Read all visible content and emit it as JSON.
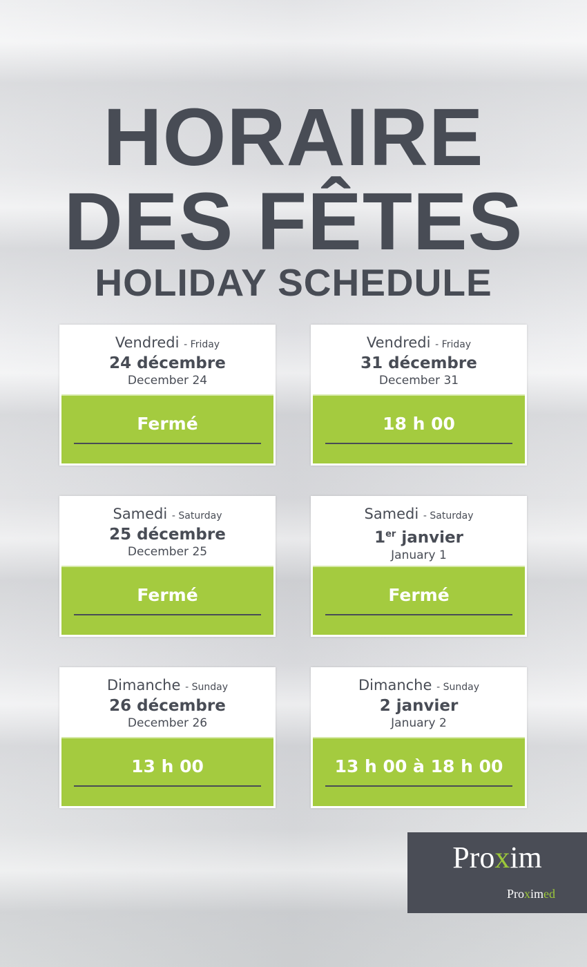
{
  "title": {
    "line1": "HORAIRE",
    "line2": "DES FÊTES",
    "line3": "HOLIDAY SCHEDULE"
  },
  "cards": [
    {
      "day_fr": "Vendredi",
      "day_en": "- Friday",
      "date_fr": "24 décembre",
      "date_en": "December 24",
      "hours": "Fermé"
    },
    {
      "day_fr": "Vendredi",
      "day_en": "- Friday",
      "date_fr": "31 décembre",
      "date_en": "December 31",
      "hours": "18 h 00"
    },
    {
      "day_fr": "Samedi",
      "day_en": "- Saturday",
      "date_fr": "25 décembre",
      "date_en": "December 25",
      "hours": "Fermé"
    },
    {
      "day_fr": "Samedi",
      "day_en": "- Saturday",
      "date_fr_num": "1",
      "date_fr_sup": "er",
      "date_fr": "janvier",
      "date_en": "January 1",
      "hours": "Fermé"
    },
    {
      "day_fr": "Dimanche",
      "day_en": "- Sunday",
      "date_fr": "26 décembre",
      "date_en": "December 26",
      "hours": "13 h 00"
    },
    {
      "day_fr": "Dimanche",
      "day_en": "- Sunday",
      "date_fr": "2 janvier",
      "date_en": "January 2",
      "hours": "13 h 00 à 18 h 00"
    }
  ],
  "logo": {
    "brand_a": "Pro",
    "brand_x": "x",
    "brand_b": "im",
    "sub_a": "Pro",
    "sub_x": "x",
    "sub_b": "im",
    "sub_c": "ed"
  },
  "colors": {
    "green": "#a4cb3f",
    "dark": "#484c55"
  }
}
